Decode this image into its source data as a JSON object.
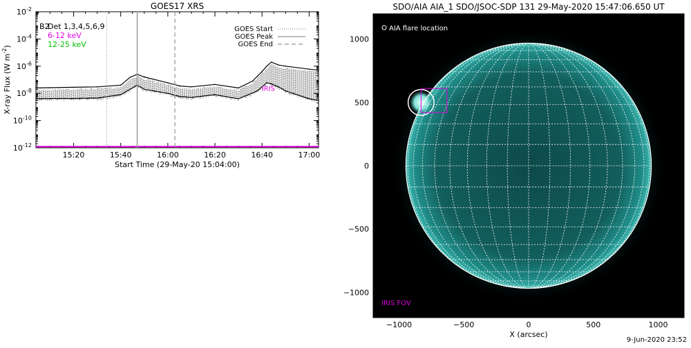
{
  "chart_data": [
    {
      "type": "line",
      "title": "GOES17 XRS",
      "xlabel": "Start Time (29-May-20 15:04:00)",
      "ylabel": "X-ray Flux (W m",
      "ylabel_sup": "-2",
      "y_scale": "log",
      "xlim": [
        "15:04",
        "17:04"
      ],
      "ylim": [
        1e-12,
        0.01
      ],
      "x_ticks": [
        "15:20",
        "15:40",
        "16:00",
        "16:20",
        "16:40",
        "17:00"
      ],
      "y_ticks": [
        {
          "value": 1e-12,
          "base": "10",
          "exp": "-12"
        },
        {
          "value": 1e-10,
          "base": "10",
          "exp": "-10"
        },
        {
          "value": 1e-08,
          "base": "10",
          "exp": "-8"
        },
        {
          "value": 1e-06,
          "base": "10",
          "exp": "-6"
        },
        {
          "value": 0.0001,
          "base": "10",
          "exp": "-4"
        },
        {
          "value": 0.01,
          "base": "10",
          "exp": "-2"
        }
      ],
      "legend_left": [
        {
          "label": "Det 1,3,4,5,6,9",
          "color": "#000000"
        },
        {
          "label": "6-12 keV",
          "color": "#e000e0"
        },
        {
          "label": "12-25 keV",
          "color": "#00c000"
        }
      ],
      "legend_left_overlap": "B2",
      "legend_right": [
        {
          "label": "GOES Start",
          "style": "dotted"
        },
        {
          "label": "GOES Peak",
          "style": "solid"
        },
        {
          "label": "GOES End",
          "style": "dashed"
        }
      ],
      "goes_markers": {
        "start": "15:34",
        "peak": "15:47",
        "end": "16:03"
      },
      "annotation": {
        "text": "IRIS",
        "x": "16:44",
        "y": 1.5e-08,
        "color": "#e000e0"
      },
      "series": [
        {
          "color": "#000000",
          "x": [
            "15:04",
            "15:10",
            "15:20",
            "15:30",
            "15:40",
            "15:44",
            "15:47",
            "15:50",
            "16:00",
            "16:05",
            "16:10",
            "16:20",
            "16:30",
            "16:36",
            "16:40",
            "16:42",
            "16:44",
            "16:47",
            "16:50",
            "17:00",
            "17:04"
          ],
          "y": [
            2.5e-08,
            2.6e-08,
            2.8e-08,
            3e-08,
            4e-08,
            1.5e-07,
            2.5e-07,
            1.6e-07,
            6e-08,
            3.5e-08,
            3e-08,
            4.5e-08,
            2.5e-08,
            8e-08,
            4e-07,
            1e-06,
            2e-06,
            1.2e-06,
            1e-06,
            6e-07,
            5e-07
          ]
        },
        {
          "color": "#000000",
          "x": [
            "15:04",
            "15:10",
            "15:20",
            "15:30",
            "15:40",
            "15:44",
            "15:47",
            "15:50",
            "16:00",
            "16:05",
            "16:10",
            "16:20",
            "16:30",
            "16:38",
            "16:42",
            "16:44",
            "16:47",
            "16:50",
            "17:00",
            "17:04"
          ],
          "y": [
            4e-09,
            4.2e-09,
            4.2e-09,
            4.5e-09,
            8e-09,
            2e-08,
            4e-08,
            2e-08,
            1e-08,
            6e-09,
            5e-09,
            8e-09,
            4e-09,
            1.5e-08,
            6e-08,
            5e-08,
            3e-08,
            1.5e-08,
            4e-09,
            3e-09
          ]
        },
        {
          "color": "#e000e0",
          "x": [
            "15:04",
            "17:04"
          ],
          "y": [
            1.2e-12,
            1.2e-12
          ]
        }
      ]
    },
    {
      "type": "scatter",
      "title": "SDO/AIA AIA_1 SDO/JSOC-SDP 131 29-May-2020 15:47:06.650 UT",
      "xlabel": "X (arcsec)",
      "ylabel": "",
      "xlim": [
        -1200,
        1200
      ],
      "ylim": [
        -1200,
        1200
      ],
      "x_ticks": [
        -1000,
        -500,
        0,
        500,
        1000
      ],
      "y_ticks": [
        -1000,
        -500,
        0,
        500,
        1000
      ],
      "x_tick_labels": [
        "−1000",
        "−500",
        "0",
        "500",
        "1000"
      ],
      "y_tick_labels": [
        "−1000",
        "−500",
        "0",
        "500",
        "1000"
      ],
      "solar_radius": 947,
      "grid": "heliographic 10 deg",
      "image_color": "#1a8a88",
      "legend": [
        {
          "label": "AIA flare location",
          "marker": "circle",
          "color": "#ffffff"
        }
      ],
      "flare_location": {
        "x": -830,
        "y": 500,
        "radius_arcsec": 100
      },
      "fov_box": {
        "x0": -830,
        "x1": -630,
        "y0": 420,
        "y1": 610,
        "color": "#e000e0"
      },
      "fov_label": {
        "text": "IRIS FOV",
        "color": "#e000e0"
      }
    }
  ],
  "footer": {
    "date_stamp": "9-Jun-2020 23:52"
  }
}
